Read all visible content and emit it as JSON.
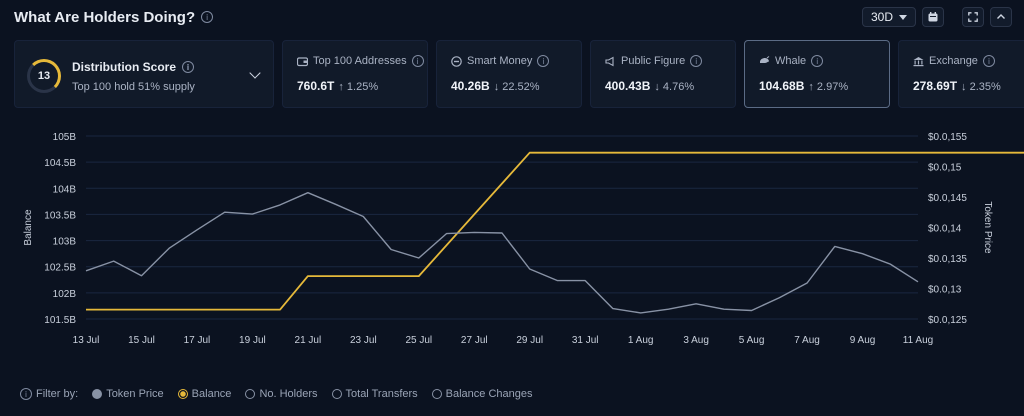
{
  "header": {
    "title": "What Are Holders Doing?"
  },
  "controls": {
    "period": "30D"
  },
  "distribution": {
    "score": "13",
    "title": "Distribution Score",
    "subtitle": "Top 100 hold 51% supply"
  },
  "cards": [
    {
      "label": "Top 100 Addresses",
      "value": "760.6T",
      "change": "↑ 1.25%"
    },
    {
      "label": "Smart Money",
      "value": "40.26B",
      "change": "↓ 22.52%"
    },
    {
      "label": "Public Figure",
      "value": "400.43B",
      "change": "↓ 4.76%"
    },
    {
      "label": "Whale",
      "value": "104.68B",
      "change": "↑ 2.97%"
    },
    {
      "label": "Exchange",
      "value": "278.69T",
      "change": "↓ 2.35%"
    }
  ],
  "chart_data": {
    "type": "line",
    "xlabel": "",
    "ylabel": "Balance",
    "y2label": "Token Price",
    "ylim": [
      101.5,
      105
    ],
    "y2lim": [
      0.0125,
      0.0155
    ],
    "y_ticks": [
      "101.5B",
      "102B",
      "102.5B",
      "103B",
      "103.5B",
      "104B",
      "104.5B",
      "105B"
    ],
    "y2_ticks": [
      "$0.0,125",
      "$0.0,13",
      "$0.0,135",
      "$0.0,14",
      "$0.0,145",
      "$0.0,15",
      "$0.0,155"
    ],
    "x_ticks": [
      "13 Jul",
      "15 Jul",
      "17 Jul",
      "19 Jul",
      "21 Jul",
      "23 Jul",
      "25 Jul",
      "27 Jul",
      "29 Jul",
      "31 Jul",
      "1 Aug",
      "3 Aug",
      "5 Aug",
      "7 Aug",
      "9 Aug",
      "11 Aug"
    ],
    "grid": true,
    "series": [
      {
        "name": "Balance",
        "color": "#e6b93a",
        "axis": "left",
        "step": true,
        "points": [
          [
            0,
            101.68
          ],
          [
            7,
            101.68
          ],
          [
            8,
            102.32
          ],
          [
            12,
            102.32
          ],
          [
            16,
            104.68
          ],
          [
            60,
            104.68
          ]
        ]
      },
      {
        "name": "Token Price",
        "color": "#8892a5",
        "axis": "right",
        "points": [
          [
            0,
            0.01329
          ],
          [
            1,
            0.01345
          ],
          [
            2,
            0.01321
          ],
          [
            3,
            0.01366
          ],
          [
            4,
            0.01396
          ],
          [
            5,
            0.01425
          ],
          [
            6,
            0.01422
          ],
          [
            7,
            0.01437
          ],
          [
            8,
            0.01457
          ],
          [
            9,
            0.01438
          ],
          [
            10,
            0.01418
          ],
          [
            11,
            0.01364
          ],
          [
            12,
            0.0135
          ],
          [
            13,
            0.0139
          ],
          [
            14,
            0.01392
          ],
          [
            15,
            0.01391
          ],
          [
            16,
            0.01332
          ],
          [
            17,
            0.01313
          ],
          [
            18,
            0.01313
          ],
          [
            19,
            0.01267
          ],
          [
            20,
            0.0126
          ],
          [
            21,
            0.01266
          ],
          [
            22,
            0.01275
          ],
          [
            23,
            0.01266
          ],
          [
            24,
            0.01264
          ],
          [
            25,
            0.01285
          ],
          [
            26,
            0.01309
          ],
          [
            27,
            0.01369
          ],
          [
            28,
            0.01357
          ],
          [
            29,
            0.0134
          ],
          [
            30,
            0.01311
          ]
        ]
      }
    ]
  },
  "footer": {
    "filter_label": "Filter by:",
    "filters": [
      "Token Price",
      "Balance",
      "No. Holders",
      "Total Transfers",
      "Balance Changes"
    ]
  }
}
